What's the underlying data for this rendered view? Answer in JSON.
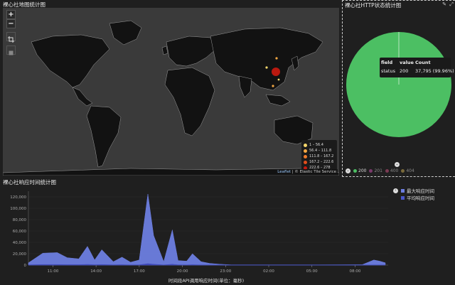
{
  "map_panel": {
    "title": "裸心社地图统计图",
    "zoom_in": "+",
    "zoom_out": "−",
    "legend": [
      {
        "label": "1 – 56.4",
        "color": "#f5d66b"
      },
      {
        "label": "56.4 – 111.8",
        "color": "#f5a843"
      },
      {
        "label": "111.8 – 167.2",
        "color": "#f07b2b"
      },
      {
        "label": "167.2 – 222.6",
        "color": "#e04e1c"
      },
      {
        "label": "222.6 – 278",
        "color": "#c41a10"
      }
    ],
    "attribution_link": "Leaflet",
    "attribution_text": " | © Elastic Tile Service"
  },
  "pie_panel": {
    "title": "裸心社HTTP状态统计图",
    "edit_icon": "pencil-icon",
    "expand_icon": "expand-icon",
    "tooltip": {
      "h_field": "field",
      "h_value": "value",
      "h_count": "Count",
      "field": "status",
      "value": "200",
      "count": "37,795 (99.96%)"
    },
    "legend": [
      {
        "label": "200",
        "color": "#4cbf63"
      },
      {
        "label": "201",
        "color": "#7a3a6b"
      },
      {
        "label": "400",
        "color": "#7b3a52"
      },
      {
        "label": "404",
        "color": "#7a6a3a"
      }
    ],
    "slice_color": "#4cbf63"
  },
  "line_panel": {
    "title": "裸心社响应时间统计图",
    "legend": [
      {
        "label": "最大响应时间",
        "color": "#6d7ee0"
      },
      {
        "label": "平均响应时间",
        "color": "#4a56c9"
      }
    ]
  },
  "chart_data": {
    "type": "area",
    "title": "裸心社响应时间统计图",
    "xlabel": "时间段API调用响应时间(单位：毫秒)",
    "ylabel": "",
    "x_ticks": [
      "11:00",
      "14:00",
      "17:00",
      "20:00",
      "23:00",
      "02:00",
      "05:00",
      "08:00"
    ],
    "y_ticks": [
      "0",
      "20,000",
      "40,000",
      "60,000",
      "80,000",
      "100,000",
      "120,000"
    ],
    "ylim": [
      0,
      130000
    ],
    "x_hours": [
      9.3,
      10.3,
      11.3,
      12.0,
      12.8,
      13.4,
      13.9,
      14.4,
      15.2,
      15.8,
      16.4,
      17.0,
      17.6,
      18.0,
      18.7,
      19.3,
      19.7,
      20.3,
      20.7,
      21.3,
      21.9,
      22.6,
      23.4,
      24.5,
      26.5,
      29.5,
      32.5,
      33.3,
      33.7,
      34.1
    ],
    "series": [
      {
        "name": "最大响应时间",
        "values": [
          4000,
          21000,
          22000,
          13000,
          11000,
          33000,
          9000,
          27000,
          6000,
          14000,
          5000,
          9000,
          125000,
          52000,
          6000,
          62000,
          8000,
          7000,
          20000,
          6000,
          3000,
          1500,
          500,
          500,
          500,
          500,
          800,
          9000,
          7000,
          4000
        ]
      },
      {
        "name": "平均响应时间",
        "values": [
          500,
          1000,
          1000,
          800,
          700,
          1200,
          600,
          1000,
          500,
          700,
          400,
          500,
          2500,
          1500,
          400,
          1500,
          500,
          400,
          800,
          400,
          300,
          200,
          100,
          100,
          100,
          100,
          100,
          400,
          300,
          200
        ]
      }
    ],
    "x_range": [
      9.3,
      34.3
    ],
    "colors": {
      "area": "#6d7ee0"
    }
  }
}
